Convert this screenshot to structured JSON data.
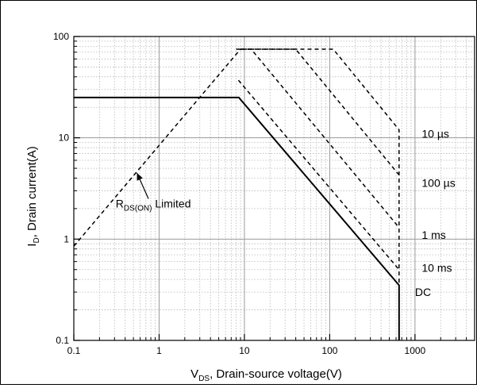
{
  "chart_data": {
    "type": "line",
    "title": "",
    "xlabel": {
      "main": "V",
      "sub": "DS",
      "rest": ", Drain-source voltage(V)"
    },
    "ylabel": {
      "main": "I",
      "sub": "D",
      "rest": ", Drain current(A)"
    },
    "x_scale": "log",
    "y_scale": "log",
    "xlim": [
      0.1,
      5000
    ],
    "ylim": [
      0.1,
      100
    ],
    "grid": true,
    "legend": "none",
    "x_ticks": [
      0.1,
      1,
      10,
      100,
      1000
    ],
    "x_tick_labels": [
      "0.1",
      "1",
      "10",
      "100",
      "1000"
    ],
    "y_ticks": [
      0.1,
      1,
      10,
      100
    ],
    "y_tick_labels": [
      "0.1",
      "1",
      "10",
      "100"
    ],
    "series": [
      {
        "name": "",
        "style": "dashed",
        "x": [
          0.1,
          9
        ],
        "y": [
          0.85,
          75
        ]
      },
      {
        "name": "",
        "style": "dashed",
        "x": [
          8,
          110,
          650,
          650
        ],
        "y": [
          75,
          75,
          12,
          0.1
        ]
      },
      {
        "name": "",
        "style": "dashed",
        "x": [
          9,
          40,
          650
        ],
        "y": [
          75,
          75,
          4.3
        ]
      },
      {
        "name": "",
        "style": "dashed",
        "x": [
          9,
          12,
          650
        ],
        "y": [
          75,
          75,
          1.3
        ]
      },
      {
        "name": "",
        "style": "dashed",
        "x": [
          8.5,
          650
        ],
        "y": [
          37,
          0.5
        ]
      },
      {
        "name": "",
        "style": "solid",
        "x": [
          0.1,
          8.6,
          650,
          650
        ],
        "y": [
          25,
          25,
          0.35,
          0.1
        ]
      }
    ],
    "labels": [
      {
        "text": "10 µs",
        "x": 1200,
        "y": 11
      },
      {
        "text": "100 µs",
        "x": 1200,
        "y": 3.6
      },
      {
        "text": "1 ms",
        "x": 1200,
        "y": 1.1
      },
      {
        "text": "10 ms",
        "x": 1200,
        "y": 0.52
      },
      {
        "text": "DC",
        "x": 1000,
        "y": 0.3
      }
    ],
    "annotation": {
      "main": "R",
      "sub": "DS(ON)",
      "rest": " Limited",
      "text_x": 0.31,
      "text_y": 2.05,
      "arrow_from_x": 0.75,
      "arrow_from_y": 2.5,
      "arrow_to_x": 0.55,
      "arrow_to_y": 4.5
    }
  }
}
